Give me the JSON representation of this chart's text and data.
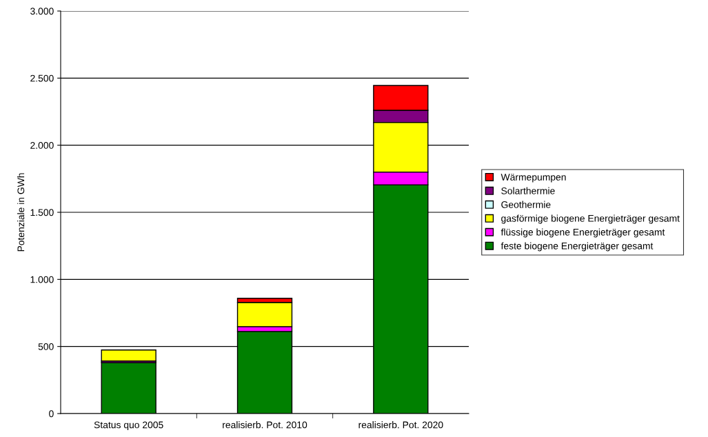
{
  "chart_data": {
    "type": "bar",
    "stacked": true,
    "ylabel": "Potenziale in GWh",
    "categories": [
      "Status quo 2005",
      "realisierb. Pot. 2010",
      "realisierb. Pot. 2020"
    ],
    "series": [
      {
        "name": "feste biogene Energieträger gesamt",
        "color": "#008000",
        "values": [
          380,
          612,
          1705
        ]
      },
      {
        "name": "flüssige biogene Energieträger gesamt",
        "color": "#ff00ff",
        "values": [
          12,
          36,
          95
        ]
      },
      {
        "name": "gasförmige biogene Energieträger gesamt",
        "color": "#ffff00",
        "values": [
          82,
          180,
          370
        ]
      },
      {
        "name": "Geothermie",
        "color": "#ccffff",
        "values": [
          null,
          null,
          null
        ]
      },
      {
        "name": "Solarthermie",
        "color": "#800080",
        "values": [
          null,
          null,
          90
        ]
      },
      {
        "name": "Wärmepumpen",
        "color": "#ff0000",
        "values": [
          null,
          31,
          185
        ]
      }
    ],
    "ylim": [
      0,
      3000
    ],
    "yticks": [
      {
        "value": 0,
        "label": "0"
      },
      {
        "value": 500,
        "label": "500"
      },
      {
        "value": 1000,
        "label": "1.000"
      },
      {
        "value": 1500,
        "label": "1.500"
      },
      {
        "value": 2000,
        "label": "2.000"
      },
      {
        "value": 2500,
        "label": "2.500"
      },
      {
        "value": 3000,
        "label": "3.000"
      }
    ],
    "grid": "y",
    "legend": "right"
  }
}
